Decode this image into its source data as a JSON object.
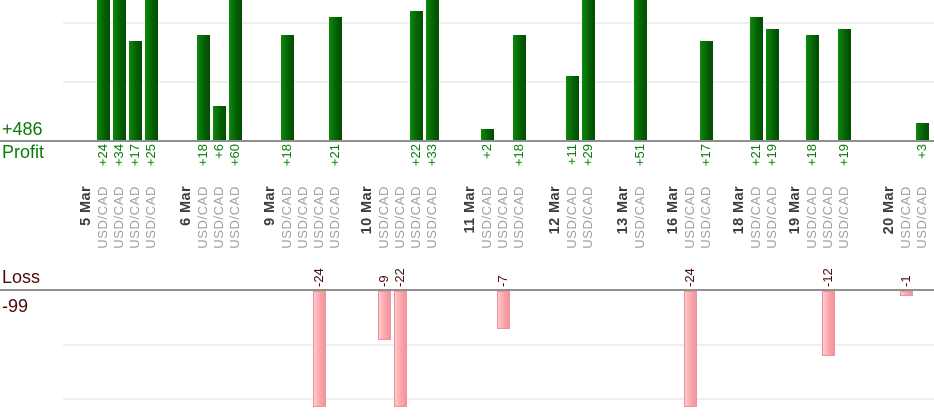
{
  "chart_data": {
    "type": "bar",
    "instrument": "USD/CAD",
    "profit_axis": {
      "label": "Profit",
      "total": "+486",
      "gridline_values": [
        10,
        20
      ],
      "visible_range": [
        0,
        24
      ],
      "orientation": "bars grow up from baseline, tall bars clipped at image top"
    },
    "loss_axis": {
      "label": "Loss",
      "total": "-99",
      "gridline_values": [
        -10,
        -20
      ],
      "visible_range": [
        0,
        -21.5
      ],
      "orientation": "bars grow down from baseline, tall bars clipped at plot bottom"
    },
    "groups": [
      {
        "date": "5 Mar",
        "trades": [
          {
            "value": 24,
            "label": "+24"
          },
          {
            "value": 34,
            "label": "+34"
          },
          {
            "value": 17,
            "label": "+17"
          },
          {
            "value": 25,
            "label": "+25"
          }
        ]
      },
      {
        "date": "6 Mar",
        "trades": [
          {
            "value": 18,
            "label": "+18"
          },
          {
            "value": 6,
            "label": "+6"
          },
          {
            "value": 60,
            "label": "+60"
          }
        ]
      },
      {
        "date": "9 Mar",
        "trades": [
          {
            "value": 18,
            "label": "+18"
          },
          {
            "value": 0,
            "label": ""
          },
          {
            "value": -24,
            "label": "-24"
          },
          {
            "value": 21,
            "label": "+21"
          }
        ]
      },
      {
        "date": "10 Mar",
        "trades": [
          {
            "value": -9,
            "label": "-9"
          },
          {
            "value": -22,
            "label": "-22"
          },
          {
            "value": 22,
            "label": "+22"
          },
          {
            "value": 33,
            "label": "+33"
          }
        ]
      },
      {
        "date": "11 Mar",
        "trades": [
          {
            "value": 2,
            "label": "+2"
          },
          {
            "value": -7,
            "label": "-7"
          },
          {
            "value": 18,
            "label": "+18"
          }
        ]
      },
      {
        "date": "12 Mar",
        "trades": [
          {
            "value": 11,
            "label": "+11"
          },
          {
            "value": 29,
            "label": "+29"
          }
        ]
      },
      {
        "date": "13 Mar",
        "trades": [
          {
            "value": 51,
            "label": "+51"
          }
        ]
      },
      {
        "date": "16 Mar",
        "trades": [
          {
            "value": -24,
            "label": "-24"
          },
          {
            "value": 17,
            "label": "+17"
          }
        ]
      },
      {
        "date": "18 Mar",
        "trades": [
          {
            "value": 21,
            "label": "+21"
          },
          {
            "value": 19,
            "label": "+19"
          }
        ]
      },
      {
        "date": "19 Mar",
        "trades": [
          {
            "value": 18,
            "label": "+18"
          },
          {
            "value": -12,
            "label": "-12"
          },
          {
            "value": 19,
            "label": "+19"
          }
        ]
      },
      {
        "date": "20 Mar",
        "trades": [
          {
            "value": -1,
            "label": "-1"
          },
          {
            "value": 3,
            "label": "+3"
          }
        ]
      }
    ],
    "colors": {
      "profit_bar": "#056005",
      "profit_bar_light": "#0d8a0d",
      "loss_bar": "#f9a2a9",
      "loss_bar_light": "#ffc9cc",
      "loss_bar_border": "#e9959d",
      "profit_text": "#0a7a0a",
      "loss_text": "#4d0a0a",
      "date_text": "#3d3d3d",
      "instrument_text": "#a0a0a0",
      "grid": "#efefef",
      "axis": "#909090"
    }
  }
}
